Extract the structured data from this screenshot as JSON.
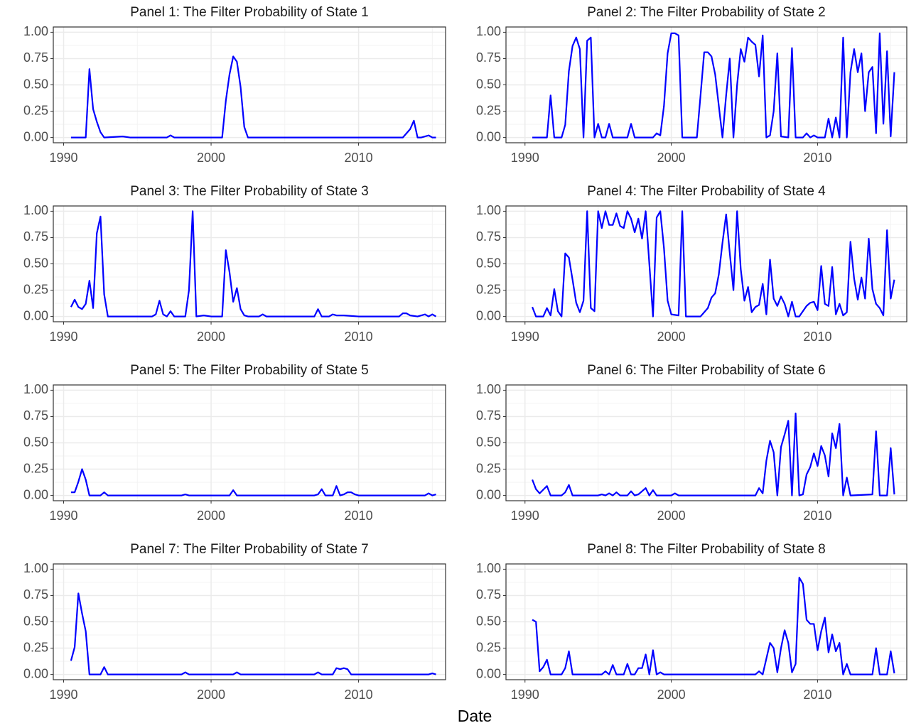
{
  "xlabel": "Date",
  "chart_data": [
    {
      "type": "line",
      "title": "Panel 1: The Filter Probability of State 1",
      "color": "#0000ff",
      "grid": true,
      "xlim": [
        1989.3,
        2015.9
      ],
      "ylim": [
        -0.05,
        1.05
      ],
      "xticks": [
        1990,
        2000,
        2010
      ],
      "yticks": [
        {
          "value": 0,
          "label": "0.00"
        },
        {
          "value": 0.25,
          "label": "0.25"
        },
        {
          "value": 0.5,
          "label": "0.50"
        },
        {
          "value": 0.75,
          "label": "0.75"
        },
        {
          "value": 1,
          "label": "1.00"
        }
      ],
      "x": [
        1990.5,
        1991.5,
        1991.75,
        1992.0,
        1992.25,
        1992.5,
        1992.75,
        1994.0,
        1994.5,
        1995.0,
        1997.0,
        1997.25,
        1997.5,
        2000.75,
        2001.0,
        2001.25,
        2001.5,
        2001.75,
        2002.0,
        2002.25,
        2002.5,
        2013.0,
        2013.5,
        2013.75,
        2014.0,
        2014.25,
        2014.75,
        2015.0,
        2015.25
      ],
      "values": [
        0,
        0,
        0.65,
        0.27,
        0.15,
        0.05,
        0,
        0.01,
        0,
        0,
        0,
        0.02,
        0,
        0,
        0.35,
        0.6,
        0.77,
        0.72,
        0.48,
        0.1,
        0,
        0,
        0.08,
        0.16,
        0,
        0,
        0.02,
        0,
        0
      ]
    },
    {
      "type": "line",
      "title": "Panel 2: The Filter Probability of State 2",
      "color": "#0000ff",
      "grid": true,
      "xlim": [
        1988.7,
        2016.1
      ],
      "ylim": [
        -0.05,
        1.05
      ],
      "xticks": [
        1990,
        2000,
        2010
      ],
      "yticks": [
        {
          "value": 0,
          "label": "0.00"
        },
        {
          "value": 0.25,
          "label": "0.25"
        },
        {
          "value": 0.5,
          "label": "0.50"
        },
        {
          "value": 0.75,
          "label": "0.75"
        },
        {
          "value": 1,
          "label": "1.00"
        }
      ],
      "x": [
        1990.5,
        1991.5,
        1991.75,
        1992.0,
        1992.5,
        1992.75,
        1993.0,
        1993.25,
        1993.5,
        1993.75,
        1994.0,
        1994.25,
        1994.5,
        1994.75,
        1995.0,
        1995.25,
        1995.5,
        1995.75,
        1996.0,
        1997.0,
        1997.25,
        1997.5,
        1998.75,
        1999.0,
        1999.25,
        1999.5,
        1999.75,
        2000.0,
        2000.25,
        2000.5,
        2000.75,
        2001.75,
        2002.0,
        2002.25,
        2002.5,
        2002.75,
        2003.0,
        2003.25,
        2003.5,
        2003.75,
        2004.0,
        2004.25,
        2004.5,
        2004.75,
        2005.0,
        2005.25,
        2005.5,
        2005.75,
        2006.0,
        2006.25,
        2006.5,
        2006.75,
        2007.0,
        2007.25,
        2007.5,
        2008.0,
        2008.25,
        2008.5,
        2009.0,
        2009.25,
        2009.5,
        2009.75,
        2010.0,
        2010.5,
        2010.75,
        2011.0,
        2011.25,
        2011.5,
        2011.75,
        2012.0,
        2012.25,
        2012.5,
        2012.75,
        2013.0,
        2013.25,
        2013.5,
        2013.75,
        2014.0,
        2014.25,
        2014.5,
        2014.75,
        2015.0,
        2015.25
      ],
      "values": [
        0,
        0,
        0.4,
        0,
        0,
        0.12,
        0.63,
        0.87,
        0.95,
        0.84,
        0,
        0.92,
        0.95,
        0,
        0.13,
        0,
        0,
        0.13,
        0,
        0,
        0.13,
        0,
        0,
        0.04,
        0.02,
        0.3,
        0.8,
        0.99,
        0.99,
        0.97,
        0,
        0,
        0.4,
        0.81,
        0.81,
        0.77,
        0.6,
        0.3,
        0,
        0.4,
        0.75,
        0,
        0.5,
        0.84,
        0.72,
        0.95,
        0.91,
        0.88,
        0.58,
        0.97,
        0,
        0.02,
        0.25,
        0.8,
        0.01,
        0,
        0.85,
        0,
        0,
        0.04,
        0,
        0.02,
        0,
        0,
        0.18,
        0,
        0.19,
        0,
        0.95,
        0,
        0.62,
        0.84,
        0.62,
        0.8,
        0.25,
        0.62,
        0.67,
        0.04,
        0.99,
        0.13,
        0.82,
        0.01,
        0.62
      ]
    },
    {
      "type": "line",
      "title": "Panel 3: The Filter Probability of State 3",
      "color": "#0000ff",
      "grid": true,
      "xlim": [
        1989.3,
        2015.9
      ],
      "ylim": [
        -0.05,
        1.05
      ],
      "xticks": [
        1990,
        2000,
        2010
      ],
      "yticks": [
        {
          "value": 0,
          "label": "0.00"
        },
        {
          "value": 0.25,
          "label": "0.25"
        },
        {
          "value": 0.5,
          "label": "0.50"
        },
        {
          "value": 0.75,
          "label": "0.75"
        },
        {
          "value": 1,
          "label": "1.00"
        }
      ],
      "x": [
        1990.5,
        1990.75,
        1991.0,
        1991.25,
        1991.5,
        1991.75,
        1992.0,
        1992.25,
        1992.5,
        1992.75,
        1993.0,
        1996.0,
        1996.25,
        1996.5,
        1996.75,
        1997.0,
        1997.25,
        1997.5,
        1998.25,
        1998.5,
        1998.75,
        1999.0,
        1999.5,
        2000.0,
        2000.75,
        2001.0,
        2001.25,
        2001.5,
        2001.75,
        2002.0,
        2002.25,
        2002.5,
        2003.25,
        2003.5,
        2003.75,
        2007.0,
        2007.25,
        2007.5,
        2008.0,
        2008.25,
        2008.5,
        2009.0,
        2010.0,
        2012.75,
        2013.0,
        2013.25,
        2013.5,
        2014.0,
        2014.5,
        2014.75,
        2015.0,
        2015.25
      ],
      "values": [
        0.09,
        0.16,
        0.09,
        0.07,
        0.12,
        0.34,
        0.08,
        0.79,
        0.95,
        0.21,
        0,
        0,
        0.02,
        0.15,
        0.02,
        0,
        0.05,
        0,
        0,
        0.25,
        1.0,
        0,
        0.01,
        0,
        0,
        0.63,
        0.42,
        0.14,
        0.27,
        0.07,
        0.01,
        0,
        0,
        0.02,
        0,
        0,
        0.07,
        0,
        0,
        0.02,
        0.01,
        0.01,
        0,
        0,
        0.03,
        0.03,
        0.01,
        0,
        0.02,
        0,
        0.02,
        0
      ]
    },
    {
      "type": "line",
      "title": "Panel 4: The Filter Probability of State 4",
      "color": "#0000ff",
      "grid": true,
      "xlim": [
        1988.7,
        2016.1
      ],
      "ylim": [
        -0.05,
        1.05
      ],
      "xticks": [
        1990,
        2000,
        2010
      ],
      "yticks": [
        {
          "value": 0,
          "label": "0.00"
        },
        {
          "value": 0.25,
          "label": "0.25"
        },
        {
          "value": 0.5,
          "label": "0.50"
        },
        {
          "value": 0.75,
          "label": "0.75"
        },
        {
          "value": 1,
          "label": "1.00"
        }
      ],
      "x": [
        1990.5,
        1990.75,
        1991.25,
        1991.5,
        1991.75,
        1992.0,
        1992.25,
        1992.5,
        1992.75,
        1993.0,
        1993.25,
        1993.5,
        1993.75,
        1994.0,
        1994.25,
        1994.5,
        1994.75,
        1995.0,
        1995.25,
        1995.5,
        1995.75,
        1996.0,
        1996.25,
        1996.5,
        1996.75,
        1997.0,
        1997.25,
        1997.5,
        1997.75,
        1998.0,
        1998.25,
        1998.5,
        1998.75,
        1999.0,
        1999.25,
        1999.5,
        1999.75,
        2000.0,
        2000.5,
        2000.75,
        2001.0,
        2002.0,
        2002.5,
        2002.75,
        2003.0,
        2003.25,
        2003.5,
        2003.75,
        2004.0,
        2004.25,
        2004.5,
        2004.75,
        2005.0,
        2005.25,
        2005.5,
        2005.75,
        2006.0,
        2006.25,
        2006.5,
        2006.75,
        2007.0,
        2007.25,
        2007.5,
        2007.75,
        2008.0,
        2008.25,
        2008.5,
        2008.75,
        2009.0,
        2009.25,
        2009.5,
        2009.75,
        2010.0,
        2010.25,
        2010.5,
        2010.75,
        2011.0,
        2011.25,
        2011.5,
        2011.75,
        2012.0,
        2012.25,
        2012.5,
        2012.75,
        2013.0,
        2013.25,
        2013.5,
        2013.75,
        2014.0,
        2014.25,
        2014.5,
        2014.75,
        2015.0,
        2015.25
      ],
      "values": [
        0.09,
        0,
        0,
        0.08,
        0.01,
        0.26,
        0.05,
        0,
        0.6,
        0.56,
        0.35,
        0.13,
        0.04,
        0.15,
        1.0,
        0.08,
        0.05,
        1.0,
        0.84,
        1.0,
        0.87,
        0.87,
        0.98,
        0.86,
        0.84,
        1.0,
        0.93,
        0.8,
        0.93,
        0.74,
        1.0,
        0.5,
        0,
        0.94,
        1.0,
        0.65,
        0.15,
        0.02,
        0.01,
        1.0,
        0,
        0,
        0.08,
        0.18,
        0.22,
        0.4,
        0.7,
        0.97,
        0.6,
        0.25,
        1.0,
        0.45,
        0.15,
        0.28,
        0.04,
        0.09,
        0.11,
        0.31,
        0.02,
        0.54,
        0.17,
        0.1,
        0.19,
        0.12,
        0,
        0.14,
        0,
        0,
        0.05,
        0.1,
        0.13,
        0.14,
        0.06,
        0.48,
        0.12,
        0.1,
        0.47,
        0.02,
        0.12,
        0.01,
        0.04,
        0.71,
        0.36,
        0.16,
        0.37,
        0.17,
        0.74,
        0.26,
        0.12,
        0.08,
        0.01,
        0.82,
        0.17,
        0.35
      ]
    },
    {
      "type": "line",
      "title": "Panel 5: The Filter Probability of State 5",
      "color": "#0000ff",
      "grid": true,
      "xlim": [
        1989.3,
        2015.9
      ],
      "ylim": [
        -0.05,
        1.05
      ],
      "xticks": [
        1990,
        2000,
        2010
      ],
      "yticks": [
        {
          "value": 0,
          "label": "0.00"
        },
        {
          "value": 0.25,
          "label": "0.25"
        },
        {
          "value": 0.5,
          "label": "0.50"
        },
        {
          "value": 0.75,
          "label": "0.75"
        },
        {
          "value": 1,
          "label": "1.00"
        }
      ],
      "x": [
        1990.5,
        1990.75,
        1991.0,
        1991.25,
        1991.5,
        1991.75,
        1992.5,
        1992.75,
        1993.0,
        1998.0,
        1998.25,
        1998.5,
        2001.25,
        2001.5,
        2001.75,
        2007.0,
        2007.25,
        2007.5,
        2007.75,
        2008.25,
        2008.5,
        2008.75,
        2009.0,
        2009.25,
        2009.5,
        2009.75,
        2010.0,
        2014.5,
        2014.75,
        2015.0,
        2015.25
      ],
      "values": [
        0.03,
        0.03,
        0.13,
        0.25,
        0.15,
        0,
        0,
        0.03,
        0,
        0,
        0.01,
        0,
        0,
        0.05,
        0,
        0,
        0.01,
        0.06,
        0,
        0,
        0.09,
        0,
        0.01,
        0.03,
        0.03,
        0.01,
        0,
        0,
        0.02,
        0,
        0.01
      ]
    },
    {
      "type": "line",
      "title": "Panel 6: The Filter Probability of State 6",
      "color": "#0000ff",
      "grid": true,
      "xlim": [
        1988.7,
        2016.1
      ],
      "ylim": [
        -0.05,
        1.05
      ],
      "xticks": [
        1990,
        2000,
        2010
      ],
      "yticks": [
        {
          "value": 0,
          "label": "0.00"
        },
        {
          "value": 0.25,
          "label": "0.25"
        },
        {
          "value": 0.5,
          "label": "0.50"
        },
        {
          "value": 0.75,
          "label": "0.75"
        },
        {
          "value": 1,
          "label": "1.00"
        }
      ],
      "x": [
        1990.5,
        1990.75,
        1991.0,
        1991.5,
        1991.75,
        1992.5,
        1992.75,
        1993.0,
        1993.25,
        1995.0,
        1995.25,
        1995.5,
        1995.75,
        1996.0,
        1996.25,
        1996.5,
        1997.0,
        1997.25,
        1997.5,
        1997.75,
        1998.0,
        1998.25,
        1998.5,
        1998.75,
        1999.0,
        2000.0,
        2000.25,
        2000.5,
        2005.75,
        2006.0,
        2006.25,
        2006.5,
        2006.75,
        2007.0,
        2007.25,
        2007.5,
        2007.75,
        2008.0,
        2008.25,
        2008.5,
        2008.75,
        2009.0,
        2009.25,
        2009.5,
        2009.75,
        2010.0,
        2010.25,
        2010.5,
        2010.75,
        2011.0,
        2011.25,
        2011.5,
        2011.75,
        2012.0,
        2012.25,
        2013.75,
        2014.0,
        2014.25,
        2014.75,
        2015.0,
        2015.25
      ],
      "values": [
        0.15,
        0.06,
        0.02,
        0.09,
        0,
        0,
        0.03,
        0.1,
        0,
        0,
        0.01,
        0,
        0.02,
        0,
        0.03,
        0,
        0,
        0.04,
        0,
        0.01,
        0.04,
        0.07,
        0,
        0.05,
        0,
        0,
        0.02,
        0,
        0,
        0.07,
        0.02,
        0.33,
        0.52,
        0.41,
        0,
        0.46,
        0.58,
        0.71,
        0,
        0.78,
        0,
        0.01,
        0.2,
        0.27,
        0.4,
        0.28,
        0.47,
        0.38,
        0.18,
        0.59,
        0.45,
        0.68,
        0,
        0.17,
        0,
        0.01,
        0.61,
        0,
        0,
        0.45,
        0.01
      ]
    },
    {
      "type": "line",
      "title": "Panel 7: The Filter Probability of State 7",
      "color": "#0000ff",
      "grid": true,
      "xlim": [
        1989.3,
        2015.9
      ],
      "ylim": [
        -0.05,
        1.05
      ],
      "xticks": [
        1990,
        2000,
        2010
      ],
      "yticks": [
        {
          "value": 0,
          "label": "0.00"
        },
        {
          "value": 0.25,
          "label": "0.25"
        },
        {
          "value": 0.5,
          "label": "0.50"
        },
        {
          "value": 0.75,
          "label": "0.75"
        },
        {
          "value": 1,
          "label": "1.00"
        }
      ],
      "x": [
        1990.5,
        1990.75,
        1991.0,
        1991.25,
        1991.5,
        1991.75,
        1992.5,
        1992.75,
        1993.0,
        1998.0,
        1998.25,
        1998.5,
        2001.5,
        2001.75,
        2002.0,
        2007.0,
        2007.25,
        2007.5,
        2008.25,
        2008.5,
        2008.75,
        2009.0,
        2009.25,
        2009.5,
        2014.75,
        2015.0,
        2015.25
      ],
      "values": [
        0.13,
        0.26,
        0.77,
        0.58,
        0.41,
        0,
        0,
        0.07,
        0,
        0,
        0.02,
        0,
        0,
        0.02,
        0,
        0,
        0.02,
        0,
        0,
        0.06,
        0.05,
        0.06,
        0.05,
        0,
        0,
        0.01,
        0
      ]
    },
    {
      "type": "line",
      "title": "Panel 8: The Filter Probability of State 8",
      "color": "#0000ff",
      "grid": true,
      "xlim": [
        1988.7,
        2016.1
      ],
      "ylim": [
        -0.05,
        1.05
      ],
      "xticks": [
        1990,
        2000,
        2010
      ],
      "yticks": [
        {
          "value": 0,
          "label": "0.00"
        },
        {
          "value": 0.25,
          "label": "0.25"
        },
        {
          "value": 0.5,
          "label": "0.50"
        },
        {
          "value": 0.75,
          "label": "0.75"
        },
        {
          "value": 1,
          "label": "1.00"
        }
      ],
      "x": [
        1990.5,
        1990.75,
        1991.0,
        1991.25,
        1991.5,
        1991.75,
        1992.5,
        1992.75,
        1993.0,
        1993.25,
        1995.25,
        1995.5,
        1995.75,
        1996.0,
        1996.25,
        1996.75,
        1997.0,
        1997.25,
        1997.5,
        1997.75,
        1998.0,
        1998.25,
        1998.5,
        1998.75,
        1999.0,
        1999.25,
        1999.5,
        2005.75,
        2006.0,
        2006.25,
        2006.5,
        2006.75,
        2007.0,
        2007.25,
        2007.5,
        2007.75,
        2008.0,
        2008.25,
        2008.5,
        2008.75,
        2009.0,
        2009.25,
        2009.5,
        2009.75,
        2010.0,
        2010.25,
        2010.5,
        2010.75,
        2011.0,
        2011.25,
        2011.5,
        2011.75,
        2012.0,
        2012.25,
        2013.75,
        2014.0,
        2014.25,
        2014.75,
        2015.0,
        2015.25
      ],
      "values": [
        0.52,
        0.5,
        0.03,
        0.07,
        0.14,
        0,
        0,
        0.06,
        0.22,
        0,
        0,
        0.03,
        0,
        0.09,
        0,
        0,
        0.1,
        0,
        0,
        0.06,
        0.06,
        0.19,
        0,
        0.23,
        0,
        0.02,
        0,
        0,
        0.03,
        0,
        0.15,
        0.3,
        0.25,
        0.02,
        0.25,
        0.42,
        0.3,
        0.02,
        0.1,
        0.92,
        0.86,
        0.52,
        0.48,
        0.48,
        0.23,
        0.41,
        0.54,
        0.21,
        0.38,
        0.22,
        0.3,
        0,
        0.1,
        0,
        0,
        0.25,
        0,
        0,
        0.22,
        0.01
      ]
    }
  ]
}
